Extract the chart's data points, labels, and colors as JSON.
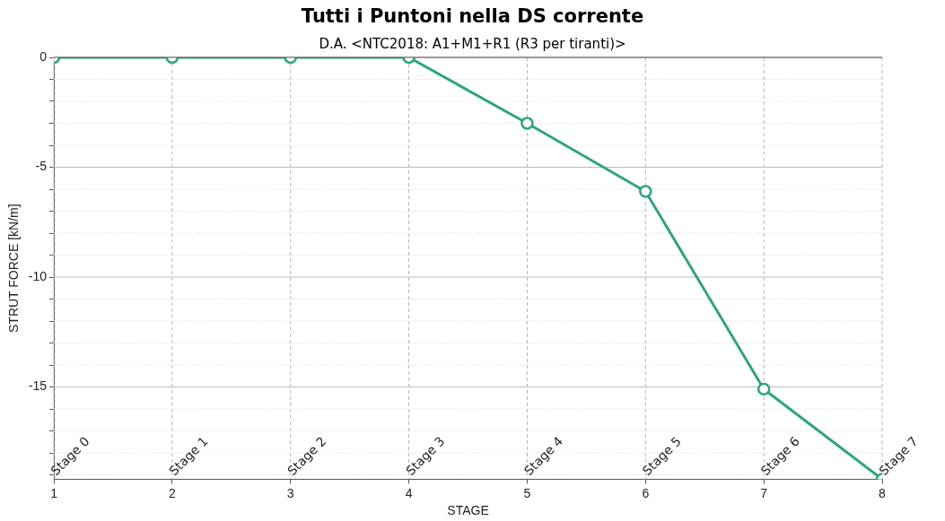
{
  "chart_data": {
    "type": "line",
    "title": "Tutti i Puntoni nella DS corrente",
    "subtitle": "D.A. <NTC2018: A1+M1+R1 (R3 per tiranti)>",
    "xlabel": "STAGE",
    "ylabel": "STRUT FORCE [kN/m]",
    "x": [
      1,
      2,
      3,
      4,
      5,
      6,
      7,
      8
    ],
    "series": [
      {
        "color": "#2ca57f",
        "values": [
          0,
          0,
          0,
          0,
          -3,
          -6.1,
          -15.1,
          -19.2
        ]
      }
    ],
    "xlim": [
      1,
      8
    ],
    "xticks": [
      1,
      2,
      3,
      4,
      5,
      6,
      7,
      8
    ],
    "ylim": [
      -19.2,
      0
    ],
    "yticks": [
      0,
      {
        "value": -1,
        "label": null
      },
      {
        "value": -2,
        "label": null
      },
      {
        "value": -3,
        "label": null
      },
      {
        "value": -4,
        "label": null
      },
      -5,
      {
        "value": -6,
        "label": null
      },
      {
        "value": -7,
        "label": null
      },
      {
        "value": -8,
        "label": null
      },
      {
        "value": -9,
        "label": null
      },
      -10,
      {
        "value": -11,
        "label": null
      },
      {
        "value": -12,
        "label": null
      },
      {
        "value": -13,
        "label": null
      },
      {
        "value": -14,
        "label": null
      },
      -15,
      {
        "value": -16,
        "label": null
      },
      {
        "value": -17,
        "label": null
      },
      {
        "value": -18,
        "label": null
      },
      {
        "value": -19,
        "label": null
      }
    ],
    "grid": true,
    "legend": false,
    "marker": "circle",
    "line_style": "solid",
    "annotations": [
      "Stage 0",
      "Stage 1",
      "Stage 2",
      "Stage 3",
      "Stage 4",
      "Stage 5",
      "Stage 6",
      "Stage 7"
    ]
  }
}
